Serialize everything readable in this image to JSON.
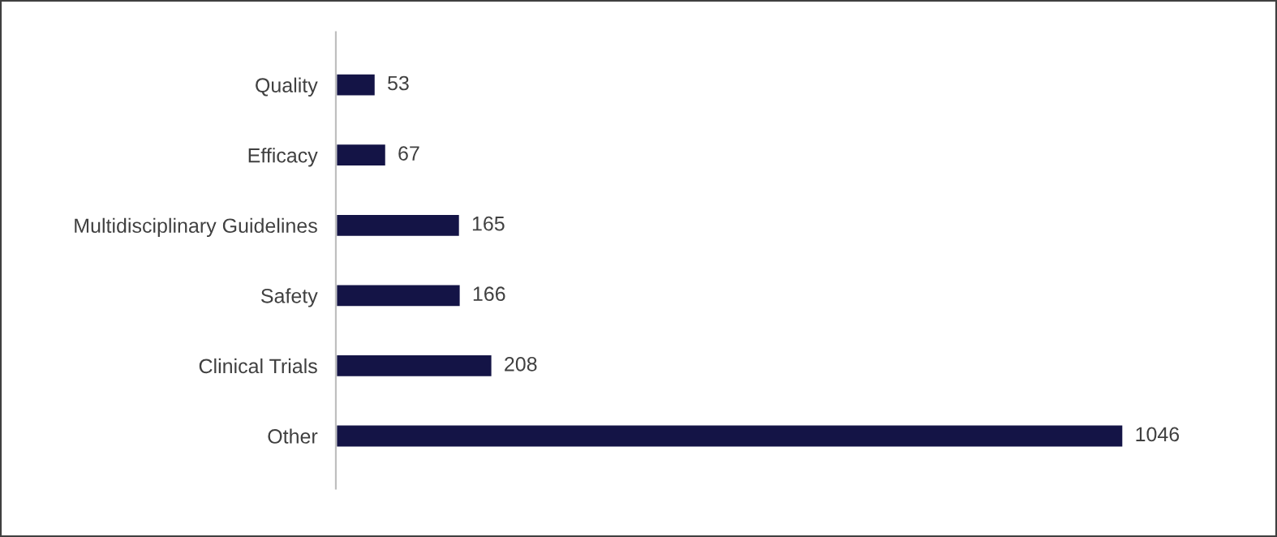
{
  "chart_data": {
    "type": "bar",
    "orientation": "horizontal",
    "categories": [
      "Quality",
      "Efficacy",
      "Multidisciplinary Guidelines",
      "Safety",
      "Clinical Trials",
      "Other"
    ],
    "values": [
      53,
      67,
      165,
      166,
      208,
      1046
    ],
    "color": "#141446",
    "data_labels": true,
    "grid": false,
    "legend": false
  }
}
